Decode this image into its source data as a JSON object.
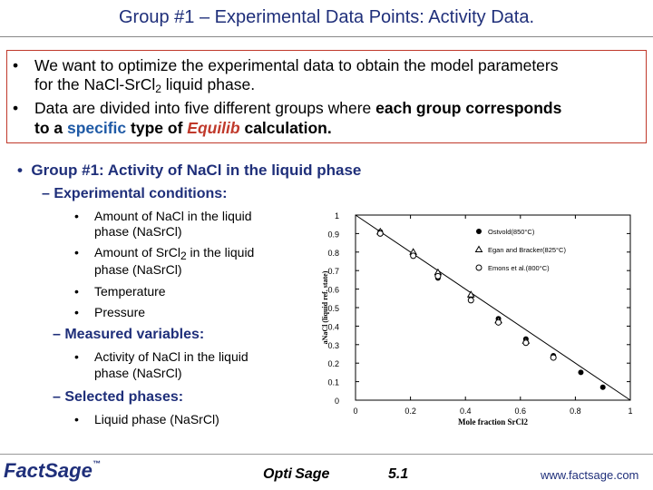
{
  "title": "Group #1 – Experimental Data Points: Activity Data.",
  "intro": {
    "b1": {
      "bullet": "•",
      "text1": "We want to optimize the experimental data to obtain the model parameters",
      "text2a": "for the NaCl-SrCl",
      "sub": "2",
      "text2b": " liquid phase."
    },
    "b2": {
      "bullet": "•",
      "text1a": "Data are divided into five different groups where ",
      "text1b": "each group corresponds",
      "text2a": "to a ",
      "text2b": "specific",
      "text2c": " type of ",
      "text2d": "Equilib",
      "text2e": " calculation",
      "text2f": "."
    }
  },
  "group": {
    "bullet": "•",
    "heading": "Group #1:  Activity of NaCl in the liquid phase",
    "exp_heading": "– Experimental conditions:",
    "conditions": [
      {
        "bullet": "•",
        "l1": "Amount of NaCl in the liquid",
        "l2": "phase (NaSrCl)"
      },
      {
        "bullet": "•",
        "l1a": "Amount of SrCl",
        "sub": "2",
        "l1b": " in the liquid",
        "l2": "phase (NaSrCl)"
      },
      {
        "bullet": "•",
        "l1": "Temperature"
      },
      {
        "bullet": "•",
        "l1": "Pressure"
      }
    ],
    "meas_heading": "– Measured variables:",
    "measured": {
      "bullet": "•",
      "l1": "Activity of NaCl in the liquid",
      "l2": "phase (NaSrCl)"
    },
    "sel_heading": "– Selected phases:",
    "selected": {
      "bullet": "•",
      "l1": "Liquid phase (NaSrCl)"
    }
  },
  "chart_data": {
    "type": "scatter",
    "xlabel": "Mole fraction SrCl2",
    "ylabel": "aNaCl (liquid ref. state)",
    "xlim": [
      0,
      1
    ],
    "ylim": [
      0,
      1
    ],
    "xticks": [
      "0",
      "0.2",
      "0.4",
      "0.6",
      "0.8",
      "1"
    ],
    "yticks": [
      "0",
      "0.1",
      "0.2",
      "0.3",
      "0.4",
      "0.5",
      "0.6",
      "0.7",
      "0.8",
      "0.9",
      "1"
    ],
    "line": {
      "x": [
        0,
        1
      ],
      "y": [
        1,
        0
      ]
    },
    "series": [
      {
        "name": "Ostvold(850°C)",
        "marker": "filled-circle",
        "x": [
          0.09,
          0.21,
          0.3,
          0.42,
          0.52,
          0.62,
          0.72,
          0.82,
          0.9
        ],
        "y": [
          0.91,
          0.79,
          0.66,
          0.56,
          0.44,
          0.33,
          0.24,
          0.15,
          0.07
        ]
      },
      {
        "name": "Egan and Bracker(825°C)",
        "marker": "triangle",
        "x": [
          0.09,
          0.21,
          0.3,
          0.42,
          0.52,
          0.62
        ],
        "y": [
          0.91,
          0.8,
          0.69,
          0.57,
          0.43,
          0.32
        ]
      },
      {
        "name": "Emons et al.(800°C)",
        "marker": "open-circle",
        "x": [
          0.09,
          0.21,
          0.3,
          0.42,
          0.52,
          0.62,
          0.72
        ],
        "y": [
          0.9,
          0.78,
          0.67,
          0.54,
          0.42,
          0.31,
          0.23
        ]
      }
    ],
    "legend_position": "top-right",
    "grid": false
  },
  "footer": {
    "logo": "FactSage",
    "logo_tm": "™",
    "program": "Opti Sage",
    "page": "5.1",
    "url": "www.factsage.com"
  }
}
